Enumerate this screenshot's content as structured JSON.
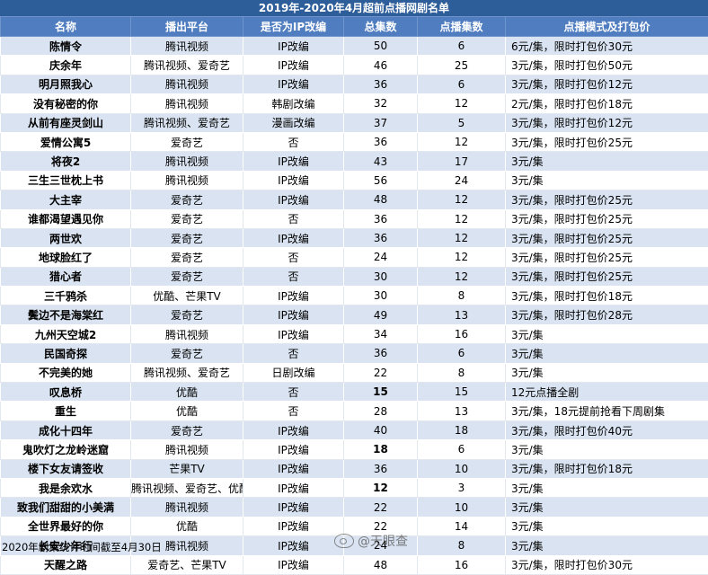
{
  "title": "2019年-2020年4月超前点播网剧名单",
  "headers": [
    "名称",
    "播出平台",
    "是否为IP改编",
    "总集数",
    "点播集数",
    "点播模式及打包价"
  ],
  "rows": [
    {
      "name": "陈情令",
      "platform": "腾讯视频",
      "ip": "IP改编",
      "total": "50",
      "vod": "6",
      "mode": "6元/集，限时打包价30元"
    },
    {
      "name": "庆余年",
      "platform": "腾讯视频、爱奇艺",
      "ip": "IP改编",
      "total": "46",
      "vod": "25",
      "mode": "3元/集，限时打包价50元"
    },
    {
      "name": "明月照我心",
      "platform": "腾讯视频",
      "ip": "IP改编",
      "total": "36",
      "vod": "6",
      "mode": "3元/集，限时打包价12元"
    },
    {
      "name": "没有秘密的你",
      "platform": "腾讯视频",
      "ip": "韩剧改编",
      "total": "32",
      "vod": "12",
      "mode": "2元/集，限时打包价18元"
    },
    {
      "name": "从前有座灵剑山",
      "platform": "腾讯视频、爱奇艺",
      "ip": "漫画改编",
      "total": "37",
      "vod": "5",
      "mode": "3元/集，限时打包价12元"
    },
    {
      "name": "爱情公寓5",
      "platform": "爱奇艺",
      "ip": "否",
      "total": "36",
      "vod": "12",
      "mode": "3元/集，限时打包价25元"
    },
    {
      "name": "将夜2",
      "platform": "腾讯视频",
      "ip": "IP改编",
      "total": "43",
      "vod": "17",
      "mode": "3元/集"
    },
    {
      "name": "三生三世枕上书",
      "platform": "腾讯视频",
      "ip": "IP改编",
      "total": "56",
      "vod": "24",
      "mode": "3元/集"
    },
    {
      "name": "大主宰",
      "platform": "爱奇艺",
      "ip": "IP改编",
      "total": "48",
      "vod": "12",
      "mode": "3元/集，限时打包价25元"
    },
    {
      "name": "谁都渴望遇见你",
      "platform": "爱奇艺",
      "ip": "否",
      "total": "36",
      "vod": "12",
      "mode": "3元/集，限时打包价25元"
    },
    {
      "name": "两世欢",
      "platform": "爱奇艺",
      "ip": "IP改编",
      "total": "36",
      "vod": "12",
      "mode": "3元/集，限时打包价25元"
    },
    {
      "name": "地球脸红了",
      "platform": "爱奇艺",
      "ip": "否",
      "total": "24",
      "vod": "12",
      "mode": "3元/集，限时打包价25元"
    },
    {
      "name": "猎心者",
      "platform": "爱奇艺",
      "ip": "否",
      "total": "30",
      "vod": "12",
      "mode": "3元/集，限时打包价25元"
    },
    {
      "name": "三千鸦杀",
      "platform": "优酷、芒果TV",
      "ip": "IP改编",
      "total": "30",
      "vod": "8",
      "mode": "3元/集，限时打包价18元"
    },
    {
      "name": "鬓边不是海棠红",
      "platform": "爱奇艺",
      "ip": "IP改编",
      "total": "49",
      "vod": "13",
      "mode": "3元/集，限时打包价28元"
    },
    {
      "name": "九州天空城2",
      "platform": "腾讯视频",
      "ip": "IP改编",
      "total": "34",
      "vod": "16",
      "mode": "3元/集"
    },
    {
      "name": "民国奇探",
      "platform": "爱奇艺",
      "ip": "否",
      "total": "36",
      "vod": "6",
      "mode": "3元/集"
    },
    {
      "name": "不完美的她",
      "platform": "腾讯视频、爱奇艺",
      "ip": "日剧改编",
      "total": "22",
      "vod": "8",
      "mode": "3元/集"
    },
    {
      "name": "叹息桥",
      "platform": "优酷",
      "ip": "否",
      "total": "15",
      "vod": "15",
      "mode": "12元点播全剧",
      "totalBold": true
    },
    {
      "name": "重生",
      "platform": "优酷",
      "ip": "否",
      "total": "28",
      "vod": "13",
      "mode": "3元/集，18元提前抢看下周剧集"
    },
    {
      "name": "成化十四年",
      "platform": "爱奇艺",
      "ip": "IP改编",
      "total": "40",
      "vod": "18",
      "mode": "3元/集，限时打包价40元"
    },
    {
      "name": "鬼吹灯之龙岭迷窟",
      "platform": "腾讯视频",
      "ip": "IP改编",
      "total": "18",
      "vod": "6",
      "mode": "3元/集",
      "totalBold": true
    },
    {
      "name": "楼下女友请签收",
      "platform": "芒果TV",
      "ip": "IP改编",
      "total": "36",
      "vod": "10",
      "mode": "3元/集，限时打包价18元"
    },
    {
      "name": "我是余欢水",
      "platform": "腾讯视频、爱奇艺、优酷",
      "ip": "IP改编",
      "total": "12",
      "vod": "3",
      "mode": "3元/集",
      "totalBold": true
    },
    {
      "name": "致我们甜甜的小美满",
      "platform": "腾讯视频",
      "ip": "IP改编",
      "total": "22",
      "vod": "10",
      "mode": "3元/集"
    },
    {
      "name": "全世界最好的你",
      "platform": "优酷",
      "ip": "IP改编",
      "total": "22",
      "vod": "14",
      "mode": "3元/集"
    },
    {
      "name": "长安少年行",
      "platform": "腾讯视频",
      "ip": "IP改编",
      "total": "24",
      "vod": "8",
      "mode": "3元/集"
    },
    {
      "name": "天醒之路",
      "platform": "爱奇艺、芒果TV",
      "ip": "IP改编",
      "total": "48",
      "vod": "16",
      "mode": "3元/集，限时打包价30元"
    }
  ],
  "footnote": "2020年剧集统计时间截至4月30日",
  "watermark": "@天眼查"
}
